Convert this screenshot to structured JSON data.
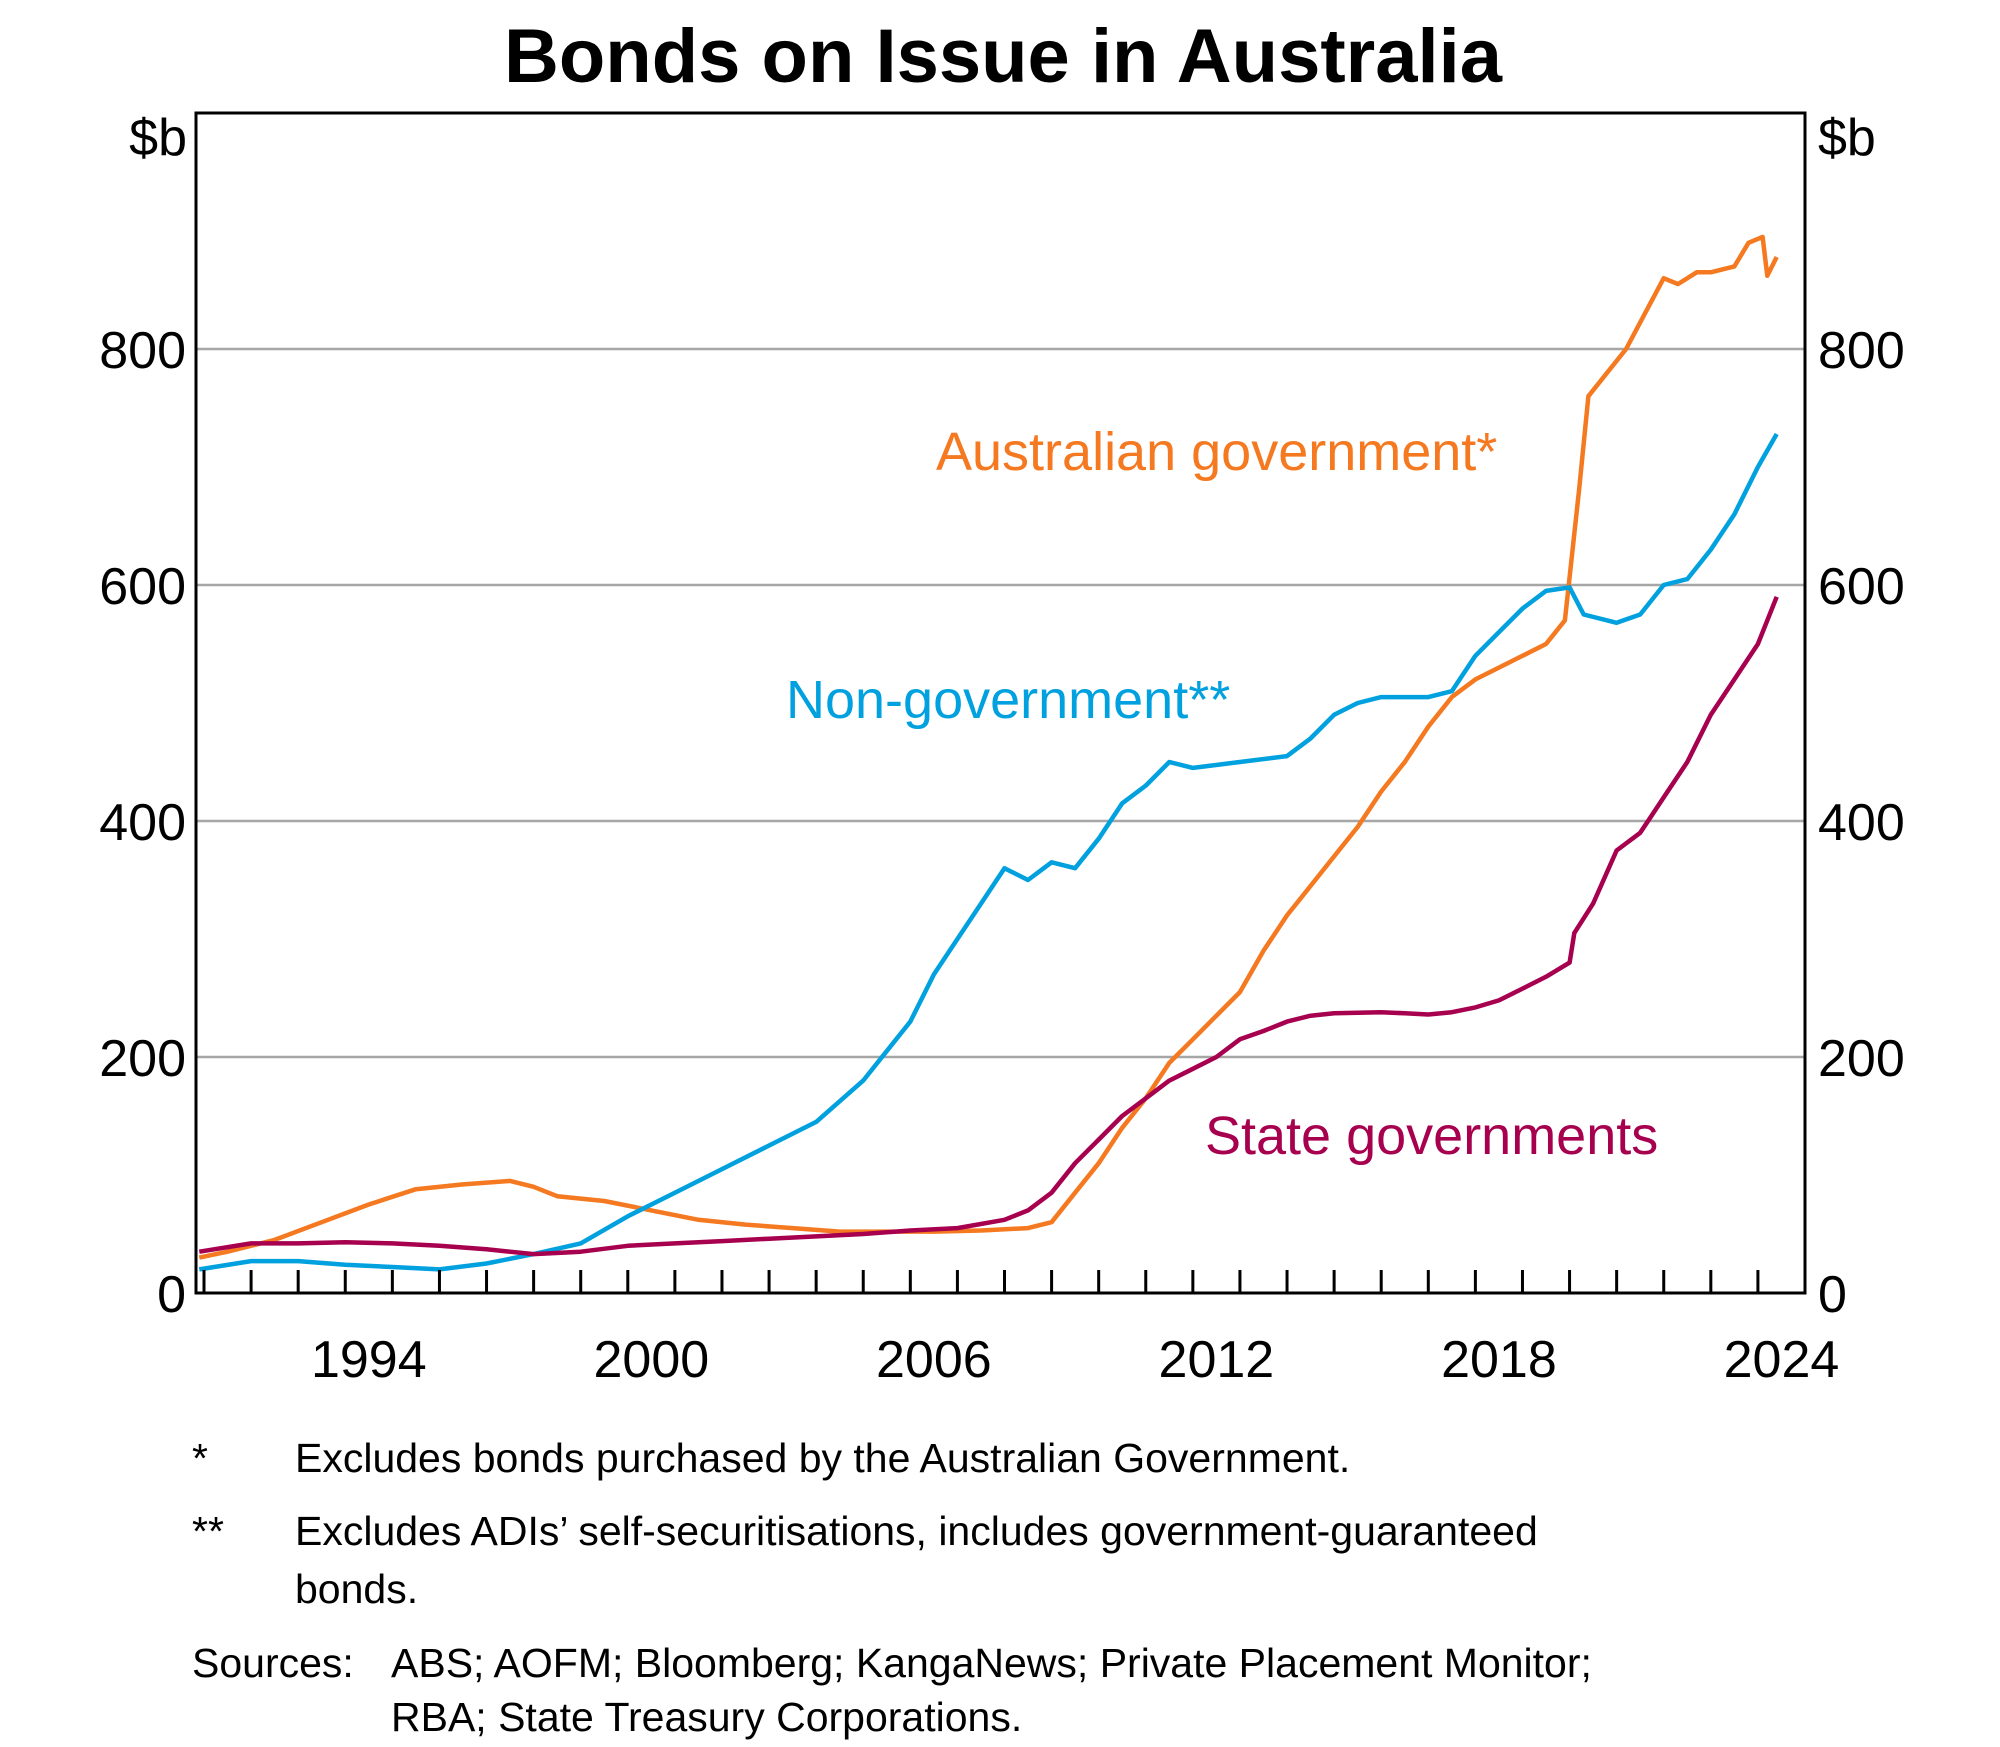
{
  "chart_data": {
    "type": "line",
    "title": "Bonds on Issue in Australia",
    "ylabel_left": "$b",
    "ylabel_right": "$b",
    "xlim": [
      1990.83,
      2025.0
    ],
    "ylim": [
      0,
      1000
    ],
    "yticks": [
      0,
      200,
      400,
      600,
      800
    ],
    "ytick_labels": [
      "0",
      "200",
      "400",
      "600",
      "800"
    ],
    "xtick_labels": [
      {
        "label": "1994",
        "year": 1994
      },
      {
        "label": "2000",
        "year": 2000
      },
      {
        "label": "2006",
        "year": 2006
      },
      {
        "label": "2012",
        "year": 2012
      },
      {
        "label": "2018",
        "year": 2018
      },
      {
        "label": "2024",
        "year": 2024
      }
    ],
    "grid": true,
    "series": [
      {
        "name": "Australian government*",
        "color": "#F47920",
        "x": [
          1990.9,
          1991.5,
          1992.5,
          1993.5,
          1994.5,
          1995.5,
          1996.5,
          1997.5,
          1998,
          1998.5,
          1999.5,
          2000.5,
          2001.5,
          2002.5,
          2003.5,
          2004.5,
          2005.5,
          2006.5,
          2007.5,
          2008.5,
          2009,
          2009.5,
          2010,
          2010.5,
          2011,
          2011.5,
          2012,
          2012.5,
          2013,
          2013.5,
          2014,
          2014.5,
          2015,
          2015.5,
          2016,
          2016.5,
          2017,
          2017.5,
          2018,
          2018.5,
          2019,
          2019.5,
          2019.9,
          2020.2,
          2020.4,
          2020.8,
          2021.2,
          2021.6,
          2022,
          2022.3,
          2022.7,
          2023,
          2023.5,
          2023.8,
          2024.1,
          2024.2,
          2024.4
        ],
        "values": [
          30,
          35,
          45,
          60,
          75,
          88,
          92,
          95,
          90,
          82,
          78,
          70,
          62,
          58,
          55,
          52,
          52,
          52,
          53,
          55,
          60,
          85,
          110,
          140,
          165,
          195,
          215,
          235,
          255,
          290,
          320,
          345,
          370,
          395,
          425,
          450,
          480,
          505,
          520,
          530,
          540,
          550,
          570,
          680,
          760,
          780,
          800,
          830,
          860,
          855,
          865,
          865,
          870,
          890,
          895,
          862,
          878
        ]
      },
      {
        "name": "Non-government**",
        "color": "#00A1DE",
        "x": [
          1990.9,
          1992,
          1993,
          1994,
          1995,
          1996,
          1997,
          1998,
          1999,
          2000,
          2001,
          2002,
          2003,
          2004,
          2005,
          2006,
          2006.5,
          2007,
          2007.5,
          2008,
          2008.5,
          2009,
          2009.5,
          2010,
          2010.5,
          2011,
          2011.5,
          2012,
          2013,
          2014,
          2014.5,
          2015,
          2015.5,
          2016,
          2016.5,
          2017,
          2017.5,
          2018,
          2018.5,
          2019,
          2019.5,
          2020,
          2020.3,
          2021,
          2021.5,
          2022,
          2022.5,
          2023,
          2023.5,
          2024,
          2024.4
        ],
        "values": [
          20,
          27,
          27,
          24,
          22,
          20,
          25,
          33,
          42,
          65,
          85,
          105,
          125,
          145,
          180,
          230,
          270,
          300,
          330,
          360,
          350,
          365,
          360,
          385,
          415,
          430,
          450,
          445,
          450,
          455,
          470,
          490,
          500,
          505,
          505,
          505,
          510,
          540,
          560,
          580,
          595,
          598,
          575,
          568,
          575,
          600,
          605,
          630,
          660,
          700,
          728
        ]
      },
      {
        "name": "State governments",
        "color": "#A6004E",
        "x": [
          1990.9,
          1992,
          1993,
          1994,
          1995,
          1996,
          1997,
          1998,
          1999,
          2000,
          2001,
          2002,
          2003,
          2004,
          2005,
          2006,
          2007,
          2008,
          2008.5,
          2009,
          2009.5,
          2010,
          2010.5,
          2011,
          2011.5,
          2012,
          2012.5,
          2013,
          2013.5,
          2014,
          2014.5,
          2015,
          2016,
          2016.5,
          2017,
          2017.5,
          2018,
          2018.5,
          2019,
          2019.5,
          2020,
          2020.1,
          2020.5,
          2021,
          2021.5,
          2022,
          2022.5,
          2023,
          2023.5,
          2024,
          2024.4
        ],
        "values": [
          35,
          42,
          42,
          43,
          42,
          40,
          37,
          33,
          35,
          40,
          42,
          44,
          46,
          48,
          50,
          53,
          55,
          62,
          70,
          85,
          110,
          130,
          150,
          165,
          180,
          190,
          200,
          215,
          222,
          230,
          235,
          237,
          238,
          237,
          236,
          238,
          242,
          248,
          258,
          268,
          280,
          305,
          330,
          375,
          390,
          420,
          450,
          490,
          520,
          550,
          590
        ]
      }
    ],
    "annotations": [
      {
        "text": "Australian government*",
        "series": "Australian government*"
      },
      {
        "text": "Non-government**",
        "series": "Non-government**"
      },
      {
        "text": "State governments",
        "series": "State governments"
      }
    ]
  },
  "footnotes": [
    {
      "marker": "*",
      "text": "Excludes bonds purchased by the Australian Government."
    },
    {
      "marker": "**",
      "text": "Excludes ADIs’ self-securitisations, includes government-guaranteed",
      "text2": "bonds."
    }
  ],
  "sources": {
    "label": "Sources:",
    "line1": "ABS; AOFM; Bloomberg; KangaNews; Private Placement Monitor;",
    "line2": "RBA; State Treasury Corporations."
  }
}
